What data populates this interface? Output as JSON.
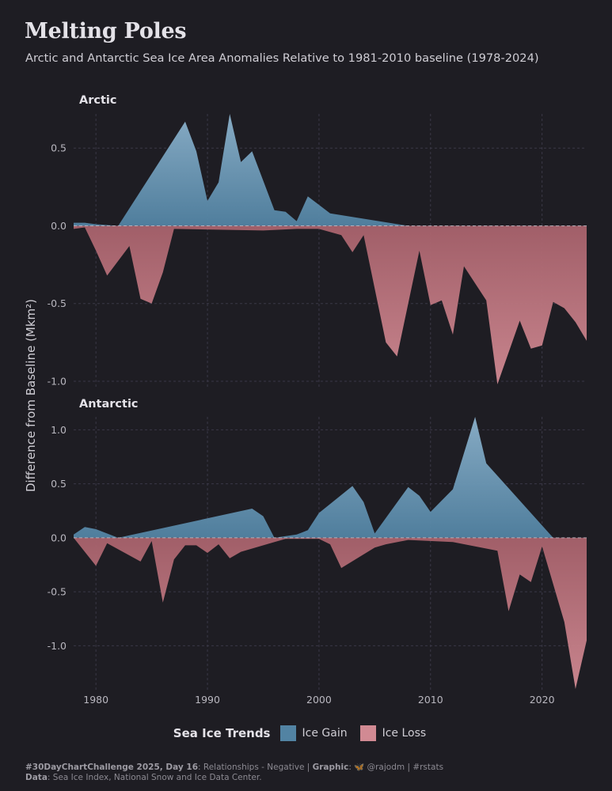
{
  "title": "Melting Poles",
  "subtitle": "Arctic and Antarctic Sea Ice Area Anomalies Relative to 1981-2010 baseline (1978-2024)",
  "ylabel": "Difference from Baseline (Mkm²)",
  "legend": {
    "title": "Sea Ice Trends",
    "gain_label": "Ice Gain",
    "loss_label": "Ice Loss"
  },
  "caption": {
    "line1_bold": "#30DayChartChallenge 2025, Day 16",
    "line1_text": ": Relationships - Negative | ",
    "line1_graphic_bold": "Graphic",
    "line1_graphic_text": ": 🦋 @rajodm | #rstats",
    "line2_bold": "Data",
    "line2_text": ": Sea Ice Index, National Snow and Ice Data Center."
  },
  "colors": {
    "gain_top": "#8cb2cc",
    "gain_bottom": "#5283a3",
    "loss_top": "#a8626c",
    "loss_bottom": "#d18a93",
    "grid": "#3a3847",
    "zero": "#c9c7cf"
  },
  "chart_data": [
    {
      "type": "area",
      "panel": "Arctic",
      "xlim": [
        1978,
        2024
      ],
      "ylim": [
        -1.0,
        0.72
      ],
      "x_ticks": [
        1980,
        1990,
        2000,
        2010,
        2020
      ],
      "y_ticks": [
        -1.0,
        -0.5,
        0.0,
        0.5
      ],
      "y_tick_labels": [
        "-1.0",
        "-0.5",
        "0.0",
        "0.5"
      ],
      "gain": {
        "x": [
          1978,
          1979,
          1980,
          1982,
          1988,
          1989,
          1990,
          1991,
          1992,
          1993,
          1994,
          1996,
          1997,
          1998,
          1999,
          2001,
          2008,
          2024
        ],
        "y": [
          0.02,
          0.02,
          0.01,
          0.0,
          0.67,
          0.48,
          0.16,
          0.28,
          0.72,
          0.41,
          0.48,
          0.1,
          0.09,
          0.03,
          0.19,
          0.08,
          0.0,
          0.0
        ]
      },
      "loss": {
        "x": [
          1978,
          1979,
          1980,
          1981,
          1983,
          1984,
          1985,
          1986,
          1987,
          1995,
          1998,
          2000,
          2002,
          2003,
          2004,
          2006,
          2007,
          2009,
          2010,
          2011,
          2012,
          2013,
          2015,
          2016,
          2018,
          2019,
          2020,
          2021,
          2022,
          2023,
          2024
        ],
        "y": [
          -0.02,
          -0.01,
          -0.16,
          -0.32,
          -0.13,
          -0.47,
          -0.5,
          -0.3,
          -0.02,
          -0.03,
          -0.02,
          -0.02,
          -0.06,
          -0.17,
          -0.06,
          -0.75,
          -0.84,
          -0.16,
          -0.51,
          -0.48,
          -0.7,
          -0.26,
          -0.48,
          -1.02,
          -0.61,
          -0.79,
          -0.77,
          -0.49,
          -0.53,
          -0.62,
          -0.74
        ]
      }
    },
    {
      "type": "area",
      "panel": "Antarctic",
      "xlim": [
        1978,
        2024
      ],
      "ylim": [
        -1.4,
        1.12
      ],
      "x_ticks": [
        1980,
        1990,
        2000,
        2010,
        2020
      ],
      "y_ticks": [
        -1.0,
        -0.5,
        0.0,
        0.5,
        1.0
      ],
      "y_tick_labels": [
        "-1.0",
        "-0.5",
        "0.0",
        "0.5",
        "1.0"
      ],
      "x_tick_labels": [
        "1980",
        "1990",
        "2000",
        "2010",
        "2020"
      ],
      "gain": {
        "x": [
          1978,
          1979,
          1980,
          1982,
          1994,
          1995,
          1996,
          1998,
          1999,
          2000,
          2003,
          2004,
          2005,
          2008,
          2009,
          2010,
          2012,
          2014,
          2015,
          2021,
          2024
        ],
        "y": [
          0.03,
          0.1,
          0.08,
          0.0,
          0.27,
          0.2,
          0.0,
          0.03,
          0.07,
          0.23,
          0.48,
          0.33,
          0.04,
          0.47,
          0.39,
          0.24,
          0.45,
          1.12,
          0.69,
          0.0,
          0.0
        ]
      },
      "loss": {
        "x": [
          1978,
          1980,
          1981,
          1984,
          1985,
          1986,
          1987,
          1988,
          1989,
          1990,
          1991,
          1992,
          1993,
          1996,
          1997,
          2000,
          2001,
          2002,
          2005,
          2006,
          2008,
          2012,
          2016,
          2017,
          2018,
          2019,
          2020,
          2022,
          2023,
          2024
        ],
        "y": [
          0.0,
          -0.26,
          -0.05,
          -0.22,
          -0.03,
          -0.6,
          -0.2,
          -0.07,
          -0.07,
          -0.14,
          -0.06,
          -0.19,
          -0.13,
          -0.04,
          -0.01,
          -0.01,
          -0.06,
          -0.28,
          -0.09,
          -0.06,
          -0.02,
          -0.04,
          -0.12,
          -0.68,
          -0.34,
          -0.41,
          -0.08,
          -0.78,
          -1.4,
          -0.95
        ]
      }
    }
  ]
}
